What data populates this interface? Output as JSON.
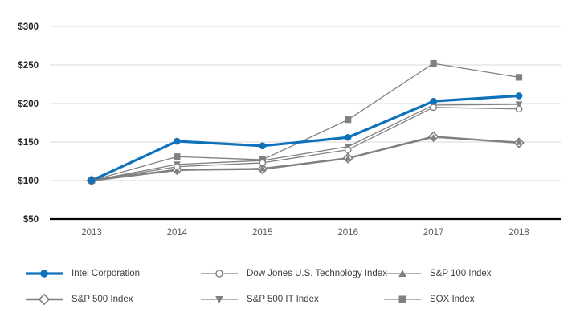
{
  "chart_data": {
    "type": "line",
    "title": "",
    "categories": [
      "2013",
      "2014",
      "2015",
      "2016",
      "2017",
      "2018"
    ],
    "y_axis": {
      "tick_labels": [
        "$300",
        "$250",
        "$200",
        "$150",
        "$100",
        "$50"
      ],
      "tick_values": [
        300,
        250,
        200,
        150,
        100,
        50
      ],
      "min": 50,
      "max": 300
    },
    "grid": true,
    "legend_position": "bottom",
    "series": [
      {
        "name": "Intel Corporation",
        "values": [
          100,
          151,
          145,
          156,
          203,
          210
        ],
        "color": "#0D72BA",
        "marker": "circle-filled",
        "line_width": 3.2
      },
      {
        "name": "Dow Jones U.S. Technology Index",
        "values": [
          100,
          118,
          123,
          140,
          195,
          193
        ],
        "color": "#808080",
        "marker": "circle-open",
        "line_width": 1.3
      },
      {
        "name": "S&P 100 Index",
        "values": [
          100,
          113,
          116,
          129,
          156,
          150
        ],
        "color": "#808080",
        "marker": "triangle-up",
        "line_width": 1.3
      },
      {
        "name": "S&P 500 Index",
        "values": [
          100,
          114,
          115,
          129,
          157,
          149
        ],
        "color": "#808080",
        "marker": "diamond-open",
        "line_width": 2.4
      },
      {
        "name": "S&P 500 IT Index",
        "values": [
          100,
          121,
          126,
          144,
          198,
          199
        ],
        "color": "#808080",
        "marker": "triangle-down",
        "line_width": 1.3
      },
      {
        "name": "SOX Index",
        "values": [
          100,
          131,
          127,
          179,
          252,
          234
        ],
        "color": "#808080",
        "marker": "square-filled",
        "line_width": 1.3
      }
    ]
  },
  "colors": {
    "intel_blue": "#0D72BA",
    "series_gray": "#808080",
    "gridline": "#D9D9D9",
    "axis_line": "#000000",
    "y_tick_text": "#262626",
    "x_tick_text": "#595959",
    "legend_text": "#404040",
    "background": "#FFFFFF",
    "marker_open_fill": "#FFFFFF"
  }
}
